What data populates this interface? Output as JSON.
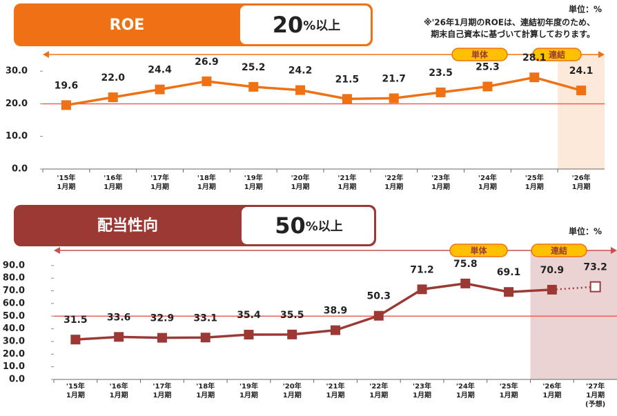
{
  "chart_data": [
    {
      "type": "line",
      "title": "ROE",
      "target": 20,
      "target_suffix": "%以上",
      "unit_label": "単位：%",
      "note": [
        "※'26年1月期のROEは、連結初年度のため、",
        "期末自己資本に基づいて計算しております。"
      ],
      "segments": [
        "単体",
        "連結"
      ],
      "categories": [
        [
          "'15年",
          "1月期"
        ],
        [
          "'16年",
          "1月期"
        ],
        [
          "'17年",
          "1月期"
        ],
        [
          "'18年",
          "1月期"
        ],
        [
          "'19年",
          "1月期"
        ],
        [
          "'20年",
          "1月期"
        ],
        [
          "'21年",
          "1月期"
        ],
        [
          "'22年",
          "1月期"
        ],
        [
          "'23年",
          "1月期"
        ],
        [
          "'24年",
          "1月期"
        ],
        [
          "'25年",
          "1月期"
        ],
        [
          "'26年",
          "1月期"
        ]
      ],
      "values": [
        19.6,
        22.0,
        24.4,
        26.9,
        25.2,
        24.2,
        21.5,
        21.7,
        23.5,
        25.3,
        28.1,
        24.1
      ],
      "value_labels": [
        "19.6",
        "22.0",
        "24.4",
        "26.9",
        "25.2",
        "24.2",
        "21.5",
        "21.7",
        "23.5",
        "25.3",
        "28.1",
        "24.1"
      ],
      "color": "#f07014",
      "target_color": "#e8605a",
      "ylim": [
        0,
        33
      ],
      "yticks": [
        {
          "value": 0,
          "label": "0.0"
        },
        {
          "value": 10,
          "label": "10.0"
        },
        {
          "value": 20,
          "label": "20.0"
        },
        {
          "value": 30,
          "label": "30.0"
        }
      ],
      "forecast_last": false
    },
    {
      "type": "line",
      "title": "配当性向",
      "target": 50,
      "target_suffix": "%以上",
      "unit_label": "単位：%",
      "segments": [
        "単体",
        "連結"
      ],
      "categories": [
        [
          "'15年",
          "1月期"
        ],
        [
          "'16年",
          "1月期"
        ],
        [
          "'17年",
          "1月期"
        ],
        [
          "'18年",
          "1月期"
        ],
        [
          "'19年",
          "1月期"
        ],
        [
          "'20年",
          "1月期"
        ],
        [
          "'21年",
          "1月期"
        ],
        [
          "'22年",
          "1月期"
        ],
        [
          "'23年",
          "1月期"
        ],
        [
          "'24年",
          "1月期"
        ],
        [
          "'25年",
          "1月期"
        ],
        [
          "'26年",
          "1月期"
        ],
        [
          "'27年",
          "1月期",
          "(予想)"
        ]
      ],
      "values": [
        31.5,
        33.6,
        32.9,
        33.1,
        35.4,
        35.5,
        38.9,
        50.3,
        71.2,
        75.8,
        69.1,
        70.9,
        73.2
      ],
      "color": "#9b3a35",
      "target_color": "#e8605a",
      "ylim": [
        0,
        103
      ],
      "yticks": [
        {
          "value": 0,
          "label": "0.0"
        },
        {
          "value": 10,
          "label": "10.0"
        },
        {
          "value": 20,
          "label": "20.0"
        },
        {
          "value": 30,
          "label": "30.0"
        },
        {
          "value": 40,
          "label": "40.0"
        },
        {
          "value": 50,
          "label": "50.0"
        },
        {
          "value": 60,
          "label": "60.0"
        },
        {
          "value": 70,
          "label": "70.0"
        },
        {
          "value": 80,
          "label": "80.0"
        },
        {
          "value": 90,
          "label": "90.0"
        }
      ],
      "forecast_last": true
    }
  ]
}
